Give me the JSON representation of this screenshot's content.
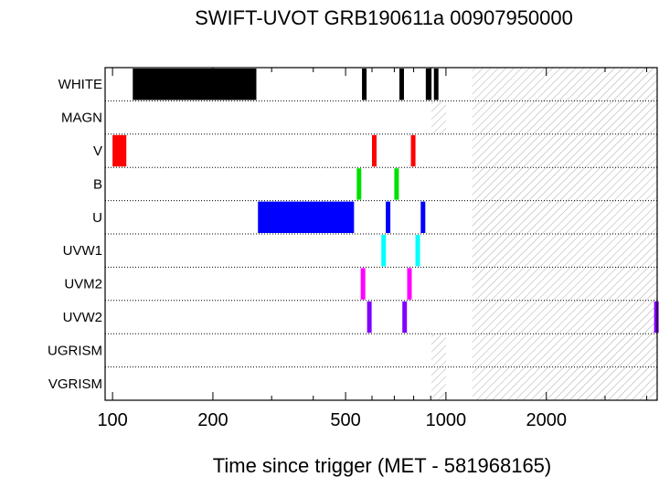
{
  "chart_data": {
    "type": "bar",
    "title": "SWIFT-UVOT GRB190611a 00907950000",
    "xlabel": "Time since trigger (MET - 581968165)",
    "ylabel": "",
    "x_scale": "log",
    "xlim": [
      95,
      4300
    ],
    "x_ticks_labeled": [
      100,
      200,
      500,
      1000,
      2000
    ],
    "x_ticks_minor": [
      300,
      400,
      600,
      700,
      800,
      900,
      3000,
      4000
    ],
    "categories": [
      "WHITE",
      "MAGN",
      "V",
      "B",
      "U",
      "UVW1",
      "UVM2",
      "UVW2",
      "UGRISM",
      "VGRISM"
    ],
    "colors": {
      "WHITE": "#000000",
      "MAGN": "#000000",
      "V": "#ff0000",
      "B": "#00e000",
      "U": "#0000ff",
      "UVW1": "#00ffff",
      "UVM2": "#ff00ff",
      "UVW2": "#8000ff",
      "UGRISM": "#000000",
      "VGRISM": "#000000"
    },
    "series": [
      {
        "filter": "WHITE",
        "intervals": [
          [
            115,
            270
          ],
          [
            560,
            575
          ],
          [
            725,
            740
          ],
          [
            870,
            905
          ],
          [
            920,
            925
          ]
        ]
      },
      {
        "filter": "MAGN",
        "intervals": []
      },
      {
        "filter": "V",
        "intervals": [
          [
            100,
            110
          ],
          [
            600,
            615
          ],
          [
            785,
            800
          ]
        ]
      },
      {
        "filter": "B",
        "intervals": [
          [
            540,
            555
          ],
          [
            700,
            715
          ]
        ]
      },
      {
        "filter": "U",
        "intervals": [
          [
            273,
            530
          ],
          [
            660,
            678
          ],
          [
            840,
            855
          ]
        ]
      },
      {
        "filter": "UVW1",
        "intervals": [
          [
            640,
            655
          ],
          [
            810,
            828
          ]
        ]
      },
      {
        "filter": "UVM2",
        "intervals": [
          [
            555,
            570
          ],
          [
            765,
            780
          ]
        ]
      },
      {
        "filter": "UVW2",
        "intervals": [
          [
            580,
            595
          ],
          [
            740,
            755
          ],
          [
            4210,
            4300
          ]
        ]
      },
      {
        "filter": "UGRISM",
        "intervals": []
      },
      {
        "filter": "VGRISM",
        "intervals": []
      }
    ],
    "hatched_regions": [
      {
        "x_range": [
          905,
          1000
        ],
        "rows": [
          "MAGN",
          "UGRISM",
          "VGRISM"
        ]
      },
      {
        "x_range": [
          1200,
          4300
        ],
        "rows": [
          "WHITE",
          "MAGN",
          "V",
          "B",
          "U",
          "UVW1",
          "UVM2",
          "UVW2",
          "UGRISM",
          "VGRISM"
        ]
      }
    ],
    "grid": "dotted row separators",
    "legend": "none"
  }
}
